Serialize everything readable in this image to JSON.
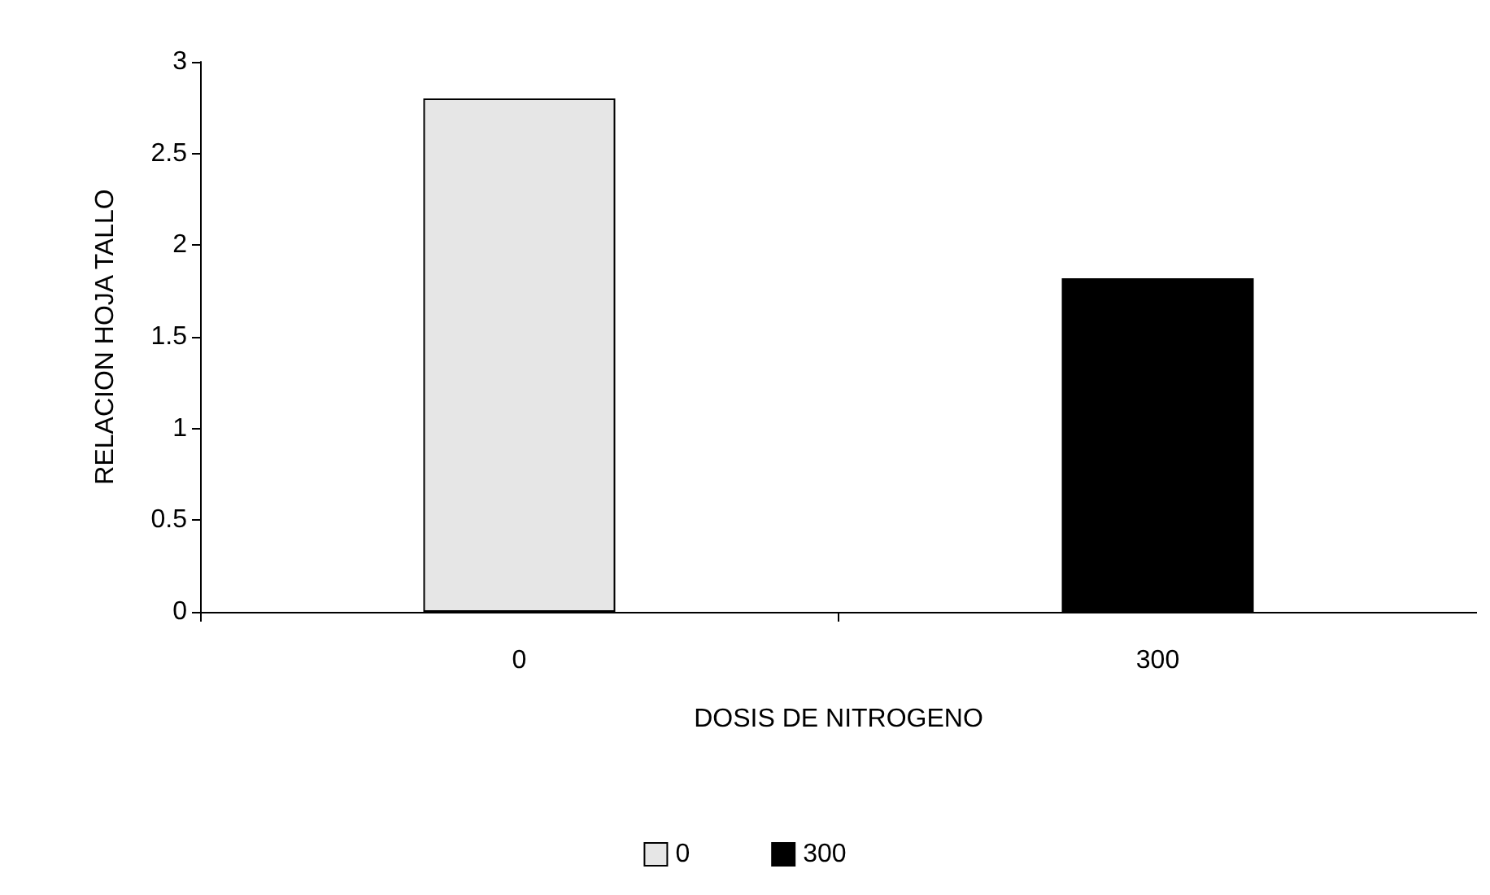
{
  "chart_data": {
    "type": "bar",
    "xlabel": "DOSIS DE NITROGENO",
    "ylabel": "RELACION HOJA TALLO",
    "categories": [
      "0",
      "300"
    ],
    "series": [
      {
        "name": "0",
        "color": "#e6e6e6",
        "values": [
          2.8,
          null
        ]
      },
      {
        "name": "300",
        "color": "#000000",
        "values": [
          null,
          1.82
        ]
      }
    ],
    "ylim": [
      0,
      3
    ],
    "yticks": [
      0,
      0.5,
      1,
      1.5,
      2,
      2.5,
      3
    ],
    "grid": false,
    "legend": "bottom"
  }
}
